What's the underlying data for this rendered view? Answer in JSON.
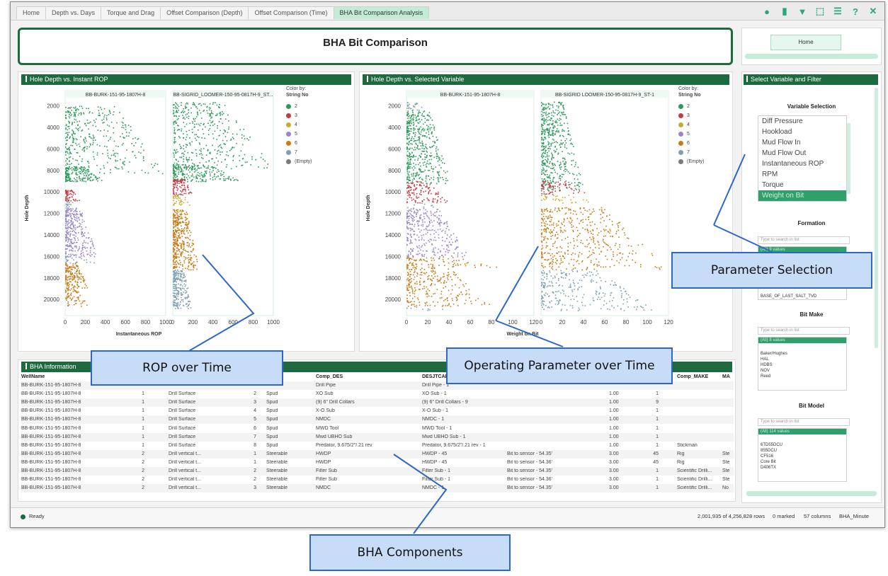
{
  "tabs": [
    "Home",
    "Depth vs. Days",
    "Torque and Drag",
    "Offset Comparison (Depth)",
    "Offset Comparison (Time)",
    "BHA Bit Comparison Analysis"
  ],
  "active_tab": 5,
  "header": {
    "title": "BHA Bit Comparison"
  },
  "home": {
    "label": "Home"
  },
  "left_panel": {
    "title": "Hole Depth vs. Instant ROP",
    "col1": "BB-BURK-151-95-1807H-8",
    "col2": "BB-SIGRID_LOOMER-150-95-0817H-9_ST...",
    "ylabel": "Hole Depth",
    "xlabel": "Instantaneous ROP",
    "xticks": [
      "0",
      "200",
      "400",
      "600",
      "800",
      "1000"
    ]
  },
  "right_panel": {
    "title": "Hole Depth vs. Selected Variable",
    "col1": "BB-BURK-151-95-1807H-8",
    "col2": "BB-SIGRID LOOMER-150-95-0817H-9_ST-1",
    "ylabel": "Hole Depth",
    "xlabel": "Weight on Bit",
    "xticks1": [
      "0",
      "20",
      "40",
      "60",
      "80",
      "100",
      "120"
    ],
    "xticks2": [
      "0",
      "20",
      "40",
      "60",
      "80",
      "100",
      "120"
    ]
  },
  "yticks": [
    "2000",
    "4000",
    "6000",
    "8000",
    "10000",
    "12000",
    "14000",
    "16000",
    "18000",
    "20000"
  ],
  "legend": {
    "color_by": "Color by:",
    "field": "String No",
    "items": [
      {
        "label": "2",
        "color": "#2e9a5b"
      },
      {
        "label": "3",
        "color": "#c33b45"
      },
      {
        "label": "4",
        "color": "#c3ad33"
      },
      {
        "label": "5",
        "color": "#9a85c6"
      },
      {
        "label": "6",
        "color": "#c47d18"
      },
      {
        "label": "7",
        "color": "#7f9fb2"
      },
      {
        "label": "(Empty)",
        "color": "#7a7a7a"
      }
    ]
  },
  "filter": {
    "title": "Select Variable and Filter",
    "var_section": "Variable Selection",
    "variables": [
      "Diff Pressure",
      "Hookload",
      "Mud Flow In",
      "Mud Flow Out",
      "Instantaneous ROP",
      "RPM",
      "Torque",
      "Weight on Bit"
    ],
    "selected_variable": "Weight on Bit",
    "formation": {
      "title": "Formation",
      "search": "Type to search in list",
      "all": "(All) 9 values",
      "last": "BASE_OF_LAST_SALT_TVD"
    },
    "bit_make": {
      "title": "Bit Make",
      "search": "Type to search in list",
      "all": "(All) 8 values",
      "items": [
        "Baker/Hughes",
        "HAL",
        "HDBS",
        "NOV",
        "Reed"
      ]
    },
    "bit_model": {
      "title": "Bit Model",
      "search": "Type to search in list",
      "all": "(All) 114 values",
      "items": [
        "6TD55DCU",
        "855DCU",
        "CF516",
        "Core Bit",
        "D406TX"
      ]
    }
  },
  "bha": {
    "title": "BHA Information",
    "columns": [
      "WellName",
      "",
      "",
      "",
      "DES",
      "Comp_DES",
      "DESJTCALC",
      "",
      "",
      "",
      "Comp_MAKE",
      "MA"
    ],
    "rows": [
      [
        "BB-BURK-151-95-1807H-8",
        "",
        "",
        "",
        "",
        "Drill Pipe",
        "Drill Pipe - 1",
        "",
        "",
        "",
        "",
        ""
      ],
      [
        "BB-BURK-151-95-1807H-8",
        "1",
        "Drill Surface",
        "2",
        "Spud",
        "XO Sub",
        "XO Sub - 1",
        "",
        "1.00",
        "1",
        "",
        ""
      ],
      [
        "BB-BURK-151-95-1807H-8",
        "1",
        "Drill Surface",
        "3",
        "Spud",
        "(9) 6\" Drill Collars",
        "(9) 6\" Drill Collars - 9",
        "",
        "1.00",
        "9",
        "",
        ""
      ],
      [
        "BB-BURK-151-95-1807H-8",
        "1",
        "Drill Surface",
        "4",
        "Spud",
        "X-O Sub",
        "X-O Sub - 1",
        "",
        "1.00",
        "1",
        "",
        ""
      ],
      [
        "BB-BURK-151-95-1807H-8",
        "1",
        "Drill Surface",
        "5",
        "Spud",
        "NMDC",
        "NMDC - 1",
        "",
        "1.00",
        "1",
        "",
        ""
      ],
      [
        "BB-BURK-151-95-1807H-8",
        "1",
        "Drill Surface",
        "6",
        "Spud",
        "MWD Tool",
        "MWD Tool - 1",
        "",
        "1.00",
        "1",
        "",
        ""
      ],
      [
        "BB-BURK-151-95-1807H-8",
        "1",
        "Drill Surface",
        "7",
        "Spud",
        "Mwd UBHO Sub",
        "Mwd UBHO Sub - 1",
        "",
        "1.00",
        "1",
        "",
        ""
      ],
      [
        "BB-BURK-151-95-1807H-8",
        "1",
        "Drill Surface",
        "8",
        "Spud",
        "Predator, 9.675/2\"/.21 rev",
        "Predator, 9.675/2\"/.21 rev - 1",
        "",
        "1.00",
        "1",
        "Stickman",
        ""
      ],
      [
        "BB-BURK-151-95-1807H-8",
        "2",
        "Drill vertical t...",
        "1",
        "Steerable",
        "HWDP",
        "HWDP - 45",
        "Bit to sensor - 54.35'",
        "3.00",
        "45",
        "Rig",
        "Ste"
      ],
      [
        "BB-BURK-151-95-1807H-8",
        "2",
        "Drill vertical t...",
        "1",
        "Steerable",
        "HWDP",
        "HWDP - 45",
        "Bit to sensor - 54.36'",
        "3.00",
        "45",
        "Rig",
        "Ste"
      ],
      [
        "BB-BURK-151-95-1807H-8",
        "2",
        "Drill vertical t...",
        "2",
        "Steerable",
        "Filter Sub",
        "Filter Sub - 1",
        "Bit to sensor - 54.35'",
        "3.00",
        "1",
        "Scientific Drilli...",
        "Ste"
      ],
      [
        "BB-BURK-151-95-1807H-8",
        "2",
        "Drill vertical t...",
        "2",
        "Steerable",
        "Filter Sub",
        "Filter Sub - 1",
        "Bit to sensor - 54.36'",
        "3.00",
        "1",
        "Scientific Drilli...",
        "Ste"
      ],
      [
        "BB-BURK-151-95-1807H-8",
        "2",
        "Drill vertical t...",
        "3",
        "Steerable",
        "NMDC",
        "NMDC - 1",
        "Bit to sensor - 54.35'",
        "3.00",
        "1",
        "Scientific Drilli...",
        "No"
      ]
    ]
  },
  "status": {
    "ready": "Ready",
    "rows": "2,001,935 of 4,256,828 rows",
    "marked": "0 marked",
    "columns": "57 columns",
    "table": "BHA_Minute"
  },
  "callouts": {
    "rop": "ROP over Time",
    "op": "Operating Parameter over Time",
    "param": "Parameter Selection",
    "bha": "BHA Components"
  }
}
